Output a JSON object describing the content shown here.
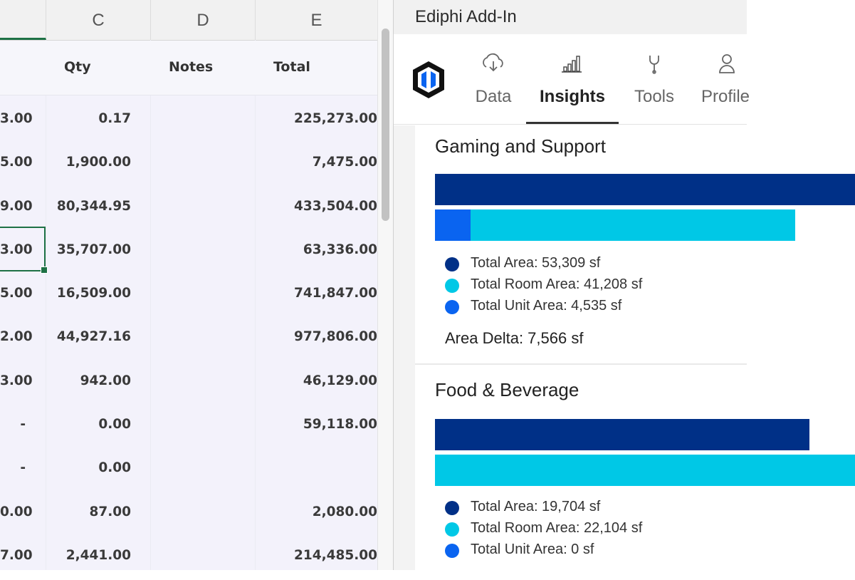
{
  "spreadsheet": {
    "column_headers": [
      "C",
      "D",
      "E"
    ],
    "field_headers": {
      "qty": "Qty",
      "notes": "Notes",
      "total": "Total"
    },
    "rows": [
      {
        "b": "3.00",
        "qty": "0.17",
        "total": "225,273.00"
      },
      {
        "b": "5.00",
        "qty": "1,900.00",
        "total": "7,475.00"
      },
      {
        "b": "9.00",
        "qty": "80,344.95",
        "total": "433,504.00"
      },
      {
        "b": "3.00",
        "qty": "35,707.00",
        "total": "63,336.00"
      },
      {
        "b": "5.00",
        "qty": "16,509.00",
        "total": "741,847.00"
      },
      {
        "b": "2.00",
        "qty": "44,927.16",
        "total": "977,806.00"
      },
      {
        "b": "3.00",
        "qty": "942.00",
        "total": "46,129.00"
      },
      {
        "b": "-",
        "qty": "0.00",
        "total": "59,118.00"
      },
      {
        "b": "-",
        "qty": "0.00",
        "total": ""
      },
      {
        "b": "0.00",
        "qty": "87.00",
        "total": "2,080.00"
      },
      {
        "b": "7.00",
        "qty": "2,441.00",
        "total": "214,485.00"
      }
    ]
  },
  "addin": {
    "title": "Ediphi Add-In",
    "tabs": [
      {
        "label": "Data",
        "icon": "cloud-download-icon",
        "active": false
      },
      {
        "label": "Insights",
        "icon": "bar-chart-icon",
        "active": true
      },
      {
        "label": "Tools",
        "icon": "wrench-icon",
        "active": false
      },
      {
        "label": "Profile",
        "icon": "person-icon",
        "active": false
      }
    ],
    "colors": {
      "total_area": "#003087",
      "total_room_area": "#00c8e6",
      "total_unit_area": "#0a64f0"
    },
    "cards": [
      {
        "title": "Gaming and Support",
        "total_area_sf": 53309,
        "total_room_area_sf": 41208,
        "total_unit_area_sf": 4535,
        "legend": [
          "Total Area: 53,309 sf",
          "Total Room Area: 41,208 sf",
          "Total Unit Area: 4,535 sf"
        ],
        "delta": "Area Delta: 7,566 sf"
      },
      {
        "title": "Food & Beverage",
        "total_area_sf": 19704,
        "total_room_area_sf": 22104,
        "total_unit_area_sf": 0,
        "legend": [
          "Total Area: 19,704 sf",
          "Total Room Area: 22,104 sf",
          "Total Unit Area: 0 sf"
        ]
      }
    ]
  }
}
